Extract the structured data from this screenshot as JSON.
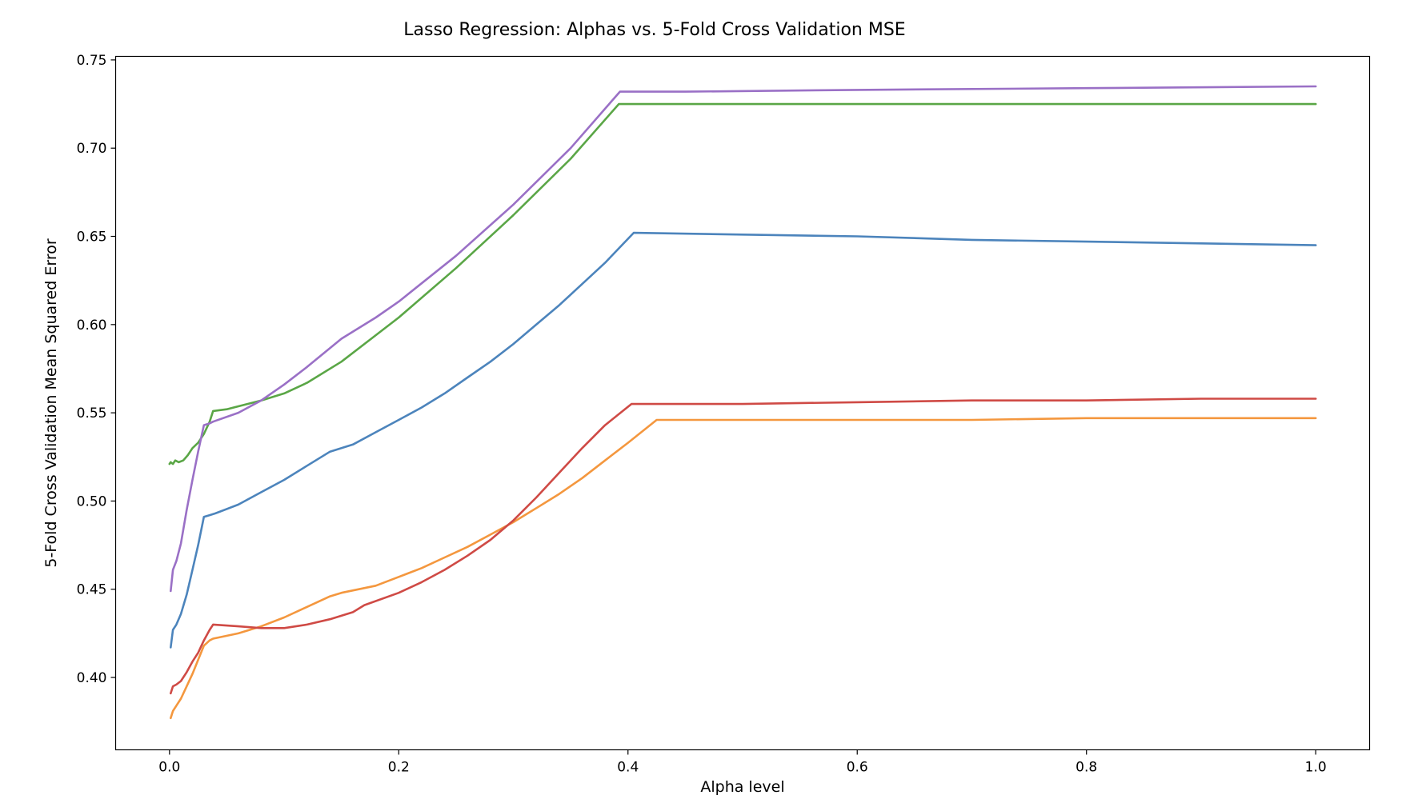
{
  "chart_data": {
    "type": "line",
    "title": "Lasso Regression: Alphas vs. 5-Fold Cross Validation MSE",
    "xlabel": "Alpha level",
    "ylabel": "5-Fold Cross Validation Mean Squared Error",
    "xlim": [
      -0.047,
      1.047
    ],
    "ylim": [
      0.359,
      0.752
    ],
    "xticks": [
      0.0,
      0.2,
      0.4,
      0.6,
      0.8,
      1.0
    ],
    "xtick_labels": [
      "0.0",
      "0.2",
      "0.4",
      "0.6",
      "0.8",
      "1.0"
    ],
    "yticks": [
      0.4,
      0.45,
      0.5,
      0.55,
      0.6,
      0.65,
      0.7,
      0.75
    ],
    "ytick_labels": [
      "0.40",
      "0.45",
      "0.50",
      "0.55",
      "0.60",
      "0.65",
      "0.70",
      "0.75"
    ],
    "grid": false,
    "legend": false,
    "series": [
      {
        "color": "#4c84bc",
        "x": [
          0.001,
          0.003,
          0.006,
          0.01,
          0.015,
          0.02,
          0.025,
          0.03,
          0.035,
          0.04,
          0.06,
          0.08,
          0.1,
          0.12,
          0.14,
          0.16,
          0.18,
          0.2,
          0.22,
          0.24,
          0.26,
          0.28,
          0.3,
          0.32,
          0.34,
          0.36,
          0.38,
          0.405,
          0.5,
          0.6,
          0.7,
          0.8,
          0.9,
          1.0
        ],
        "y": [
          0.417,
          0.427,
          0.43,
          0.436,
          0.447,
          0.461,
          0.475,
          0.491,
          0.492,
          0.493,
          0.498,
          0.505,
          0.512,
          0.52,
          0.528,
          0.532,
          0.539,
          0.546,
          0.553,
          0.561,
          0.57,
          0.579,
          0.589,
          0.6,
          0.611,
          0.623,
          0.635,
          0.652,
          0.651,
          0.65,
          0.648,
          0.647,
          0.646,
          0.645
        ]
      },
      {
        "color": "#f4973e",
        "x": [
          0.001,
          0.003,
          0.006,
          0.01,
          0.015,
          0.02,
          0.025,
          0.03,
          0.035,
          0.038,
          0.06,
          0.08,
          0.1,
          0.12,
          0.14,
          0.15,
          0.18,
          0.2,
          0.22,
          0.24,
          0.26,
          0.28,
          0.3,
          0.32,
          0.34,
          0.36,
          0.38,
          0.4,
          0.425,
          0.5,
          0.6,
          0.7,
          0.8,
          0.9,
          1.0
        ],
        "y": [
          0.377,
          0.381,
          0.384,
          0.388,
          0.395,
          0.402,
          0.41,
          0.418,
          0.421,
          0.422,
          0.425,
          0.429,
          0.434,
          0.44,
          0.446,
          0.448,
          0.452,
          0.457,
          0.462,
          0.468,
          0.474,
          0.481,
          0.488,
          0.496,
          0.504,
          0.513,
          0.523,
          0.533,
          0.546,
          0.546,
          0.546,
          0.546,
          0.547,
          0.547,
          0.547
        ]
      },
      {
        "color": "#5aa646",
        "x": [
          0.0,
          0.001,
          0.003,
          0.005,
          0.008,
          0.012,
          0.016,
          0.02,
          0.025,
          0.03,
          0.035,
          0.038,
          0.05,
          0.08,
          0.1,
          0.12,
          0.15,
          0.18,
          0.2,
          0.25,
          0.3,
          0.35,
          0.392,
          0.45,
          0.6,
          0.8,
          1.0
        ],
        "y": [
          0.521,
          0.522,
          0.521,
          0.523,
          0.522,
          0.523,
          0.526,
          0.53,
          0.533,
          0.538,
          0.545,
          0.551,
          0.552,
          0.557,
          0.561,
          0.567,
          0.579,
          0.594,
          0.604,
          0.632,
          0.662,
          0.694,
          0.725,
          0.725,
          0.725,
          0.725,
          0.725
        ]
      },
      {
        "color": "#cf4a45",
        "x": [
          0.001,
          0.003,
          0.006,
          0.01,
          0.015,
          0.02,
          0.025,
          0.03,
          0.035,
          0.038,
          0.06,
          0.08,
          0.1,
          0.12,
          0.14,
          0.16,
          0.17,
          0.2,
          0.22,
          0.24,
          0.26,
          0.28,
          0.3,
          0.32,
          0.34,
          0.36,
          0.38,
          0.403,
          0.5,
          0.6,
          0.7,
          0.8,
          0.9,
          1.0
        ],
        "y": [
          0.391,
          0.395,
          0.396,
          0.398,
          0.403,
          0.409,
          0.414,
          0.421,
          0.427,
          0.43,
          0.429,
          0.428,
          0.428,
          0.43,
          0.433,
          0.437,
          0.441,
          0.448,
          0.454,
          0.461,
          0.469,
          0.478,
          0.489,
          0.502,
          0.516,
          0.53,
          0.543,
          0.555,
          0.555,
          0.556,
          0.557,
          0.557,
          0.558,
          0.558
        ]
      },
      {
        "color": "#9a70c6",
        "x": [
          0.001,
          0.003,
          0.006,
          0.01,
          0.015,
          0.02,
          0.025,
          0.03,
          0.035,
          0.038,
          0.06,
          0.08,
          0.1,
          0.12,
          0.15,
          0.18,
          0.2,
          0.25,
          0.3,
          0.35,
          0.393,
          0.45,
          0.6,
          0.8,
          1.0
        ],
        "y": [
          0.449,
          0.461,
          0.466,
          0.476,
          0.495,
          0.512,
          0.528,
          0.543,
          0.544,
          0.545,
          0.55,
          0.557,
          0.566,
          0.576,
          0.592,
          0.604,
          0.613,
          0.639,
          0.668,
          0.7,
          0.732,
          0.732,
          0.733,
          0.734,
          0.735
        ]
      }
    ]
  }
}
